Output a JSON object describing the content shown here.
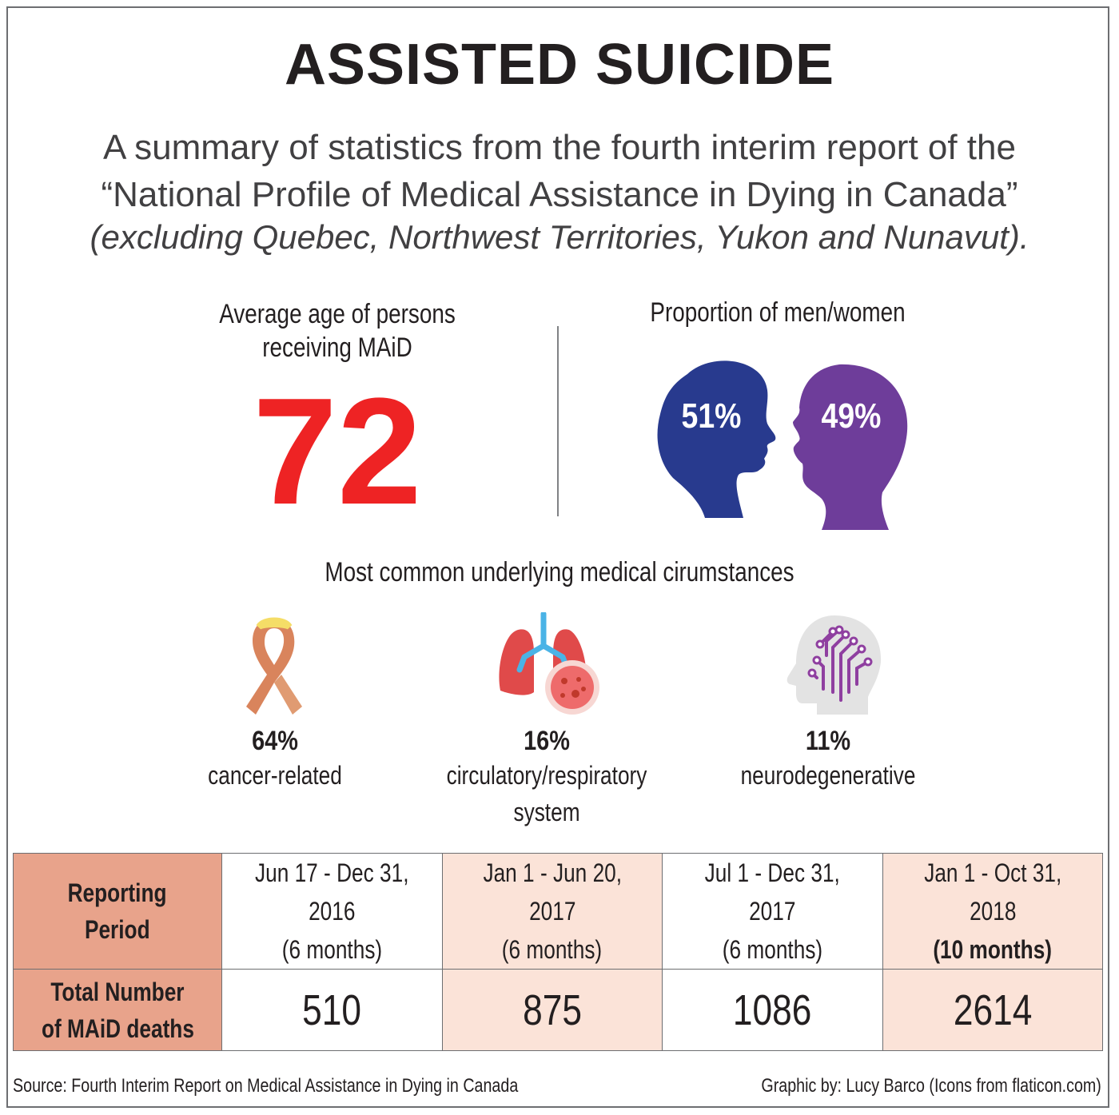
{
  "title": "ASSISTED SUICIDE",
  "subtitle": {
    "line1": "A summary of statistics from the fourth interim report of the",
    "line2": "“National Profile of Medical Assistance in Dying in Canada”",
    "line3": "(excluding Quebec, Northwest Territories, Yukon and Nunavut)."
  },
  "age": {
    "label_line1": "Average age of persons",
    "label_line2": "receiving MAiD",
    "value": "72",
    "color": "#ee2324"
  },
  "gender": {
    "label": "Proportion of men/women",
    "men_pct": "51%",
    "women_pct": "49%",
    "men_color": "#283a8e",
    "women_color": "#6e3d9a",
    "men_icon": "male-head-silhouette-icon",
    "women_icon": "female-head-silhouette-icon"
  },
  "causes": {
    "heading": "Most common underlying medical cirumstances",
    "items": [
      {
        "pct": "64%",
        "label_line1": "cancer-related",
        "label_line2": "",
        "icon": "ribbon-icon"
      },
      {
        "pct": "16%",
        "label_line1": "circulatory/respiratory",
        "label_line2": "system",
        "icon": "lungs-icon"
      },
      {
        "pct": "11%",
        "label_line1": "neurodegenerative",
        "label_line2": "",
        "icon": "brain-circuit-icon"
      }
    ]
  },
  "table": {
    "row1_header_line1": "Reporting",
    "row1_header_line2": "Period",
    "row2_header_line1": "Total Number",
    "row2_header_line2": "of MAiD deaths",
    "periods": [
      {
        "range": "Jun 17 - Dec 31, 2016",
        "duration": "(6 months)",
        "deaths": "510"
      },
      {
        "range": "Jan 1 - Jun 20, 2017",
        "duration": "(6 months)",
        "deaths": "875"
      },
      {
        "range": "Jul 1 - Dec 31, 2017",
        "duration": "(6 months)",
        "deaths": "1086"
      },
      {
        "range": "Jan 1 - Oct 31, 2018",
        "duration": "(10 months)",
        "deaths": "2614"
      }
    ],
    "header_color": "#e8a38b",
    "alt_color": "#fbe3d8"
  },
  "footer": {
    "source": "Source: Fourth Interim Report on Medical Assistance in Dying in Canada",
    "credit": "Graphic by: Lucy Barco (Icons from flaticon.com)"
  }
}
